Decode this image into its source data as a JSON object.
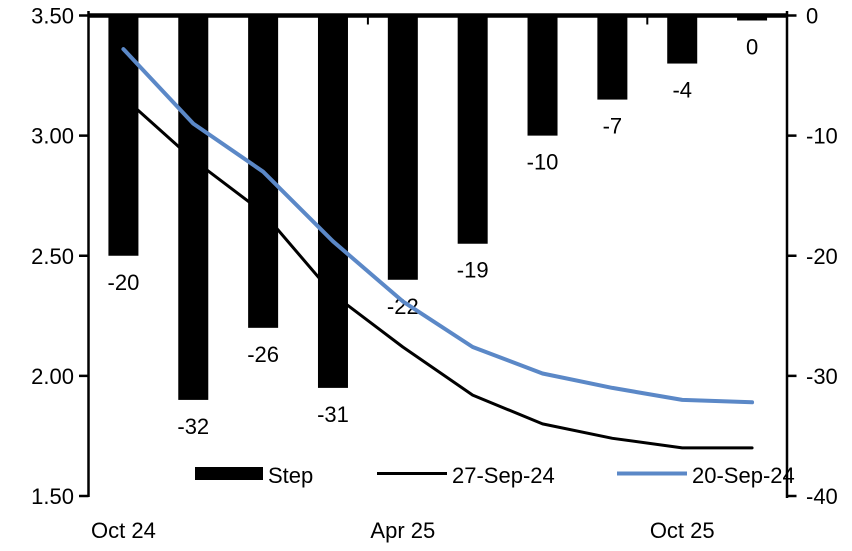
{
  "chart_data": {
    "type": "combo",
    "title": "",
    "categories": [
      "1",
      "2",
      "3",
      "4",
      "5",
      "6",
      "7",
      "8",
      "9",
      "10"
    ],
    "bars": {
      "name": "Step",
      "axis": "right",
      "color": "#000000",
      "values": [
        -20,
        -32,
        -26,
        -31,
        -22,
        -19,
        -10,
        -7,
        -4,
        0
      ],
      "data_labels": [
        "-20",
        "-32",
        "-26",
        "-31",
        "-22",
        "-19",
        "-10",
        "-7",
        "-4",
        "0"
      ]
    },
    "series": [
      {
        "name": "27-Sep-24",
        "type": "line",
        "axis": "left",
        "color": "#000000",
        "stroke_width": 3,
        "values": [
          3.16,
          2.9,
          2.68,
          2.34,
          2.12,
          1.92,
          1.8,
          1.74,
          1.7,
          1.7
        ]
      },
      {
        "name": "20-Sep-24",
        "type": "line",
        "axis": "left",
        "color": "#5B88C7",
        "stroke_width": 4,
        "values": [
          3.36,
          3.05,
          2.85,
          2.56,
          2.31,
          2.12,
          2.01,
          1.95,
          1.9,
          1.89
        ]
      }
    ],
    "left_axis": {
      "min": 1.5,
      "max": 3.5,
      "tick_labels": [
        "3.50",
        "3.00",
        "2.50",
        "2.00",
        "1.50"
      ]
    },
    "right_axis": {
      "min": -40,
      "max": 0,
      "tick_labels": [
        "0",
        "-10",
        "-20",
        "-30",
        "-40"
      ]
    },
    "x_axis": {
      "labels": [
        {
          "text": "Oct 24",
          "slot": 0
        },
        {
          "text": "Apr 25",
          "slot": 4
        },
        {
          "text": "Oct 25",
          "slot": 8
        }
      ],
      "category_tick_slots": [
        4,
        8
      ]
    },
    "legend": {
      "position": "bottom-inside",
      "entries": [
        {
          "label": "Step",
          "swatch": "rect",
          "color": "#000000"
        },
        {
          "label": "27-Sep-24",
          "swatch": "line",
          "color": "#000000"
        },
        {
          "label": "20-Sep-24",
          "swatch": "line",
          "color": "#5B88C7"
        }
      ]
    },
    "grid": false
  }
}
